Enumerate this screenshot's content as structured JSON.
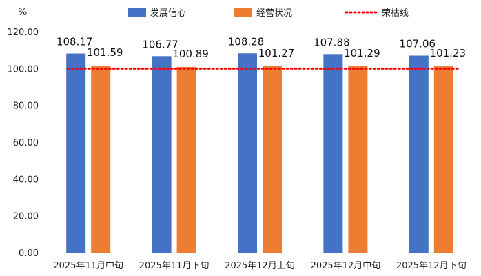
{
  "chart_data": {
    "type": "bar",
    "unit_label": "%",
    "categories": [
      "2025年11月中旬",
      "2025年11月下旬",
      "2025年12月上旬",
      "2025年12月中旬",
      "2025年12月下旬"
    ],
    "series": [
      {
        "name": "发展信心",
        "color": "#4472c4",
        "values": [
          108.17,
          106.77,
          108.28,
          107.88,
          107.06
        ]
      },
      {
        "name": "经营状况",
        "color": "#ed7d31",
        "values": [
          101.59,
          100.89,
          101.27,
          101.29,
          101.23
        ]
      }
    ],
    "reference_line": {
      "name": "荣枯线",
      "value": 100,
      "color": "#ff0000",
      "style": "dotted"
    },
    "y_ticks": [
      "0.00",
      "20.00",
      "40.00",
      "60.00",
      "80.00",
      "100.00",
      "120.00"
    ],
    "ylim": [
      0,
      120
    ],
    "grid": false,
    "legend_position": "top"
  }
}
